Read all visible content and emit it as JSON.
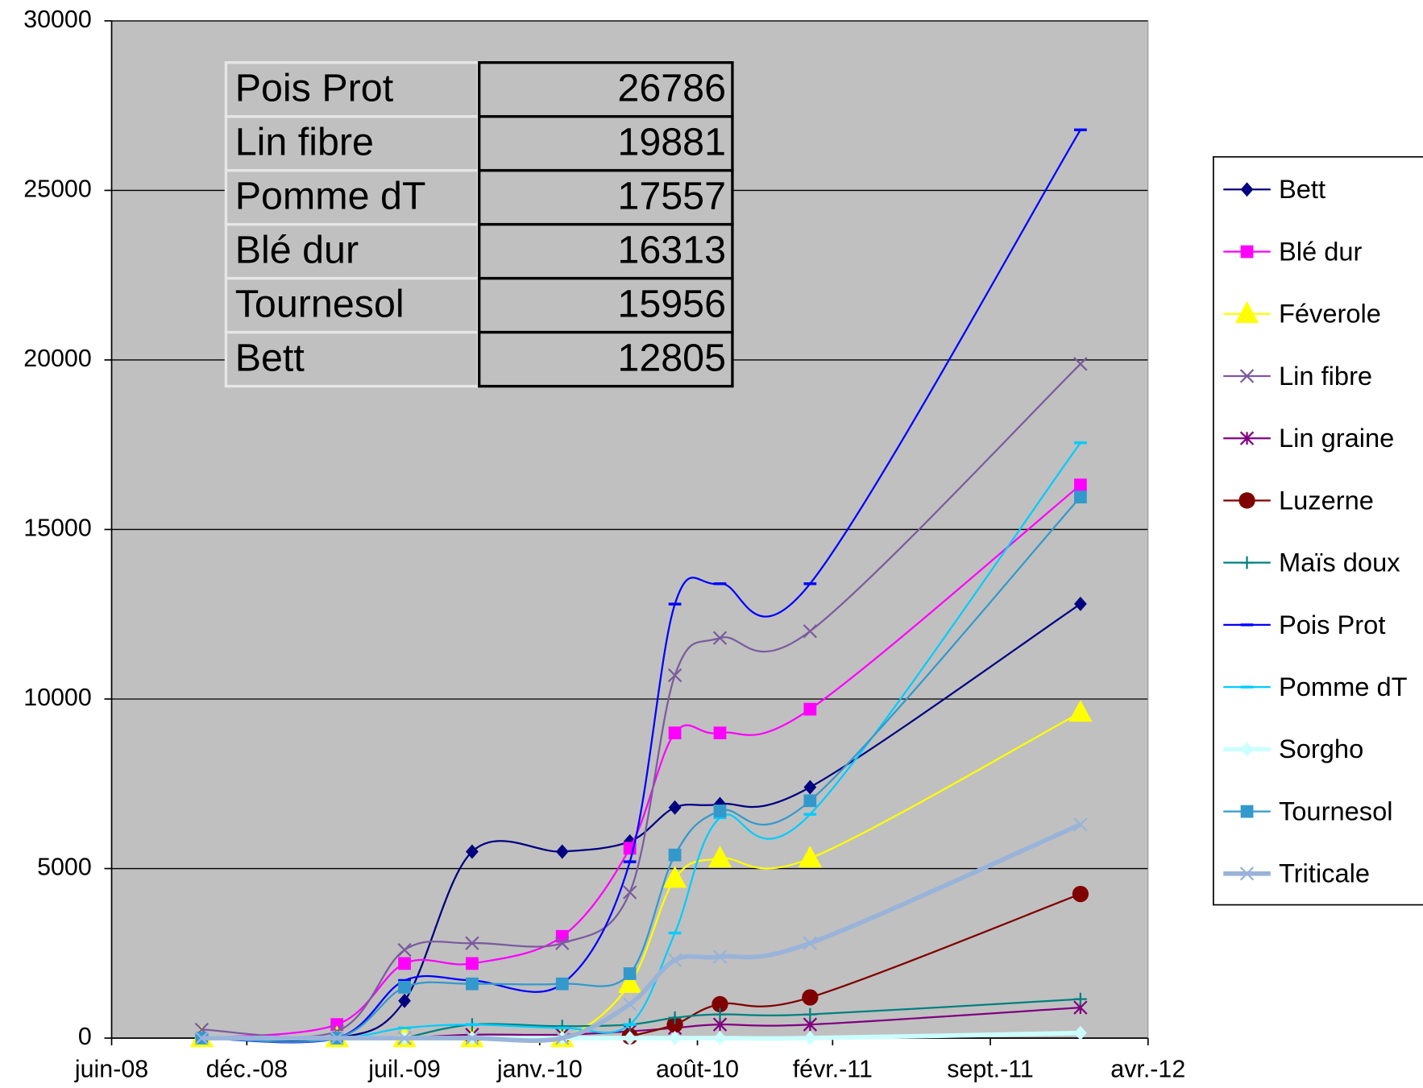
{
  "chart_data": {
    "type": "line",
    "x": [
      "2008-10",
      "2009-04",
      "2009-07",
      "2009-10",
      "2010-02",
      "2010-05",
      "2010-07",
      "2010-09",
      "2011-01",
      "2012-01"
    ],
    "xlim": [
      "2008-06",
      "2012-04"
    ],
    "xticks": [
      {
        "value": "2008-06",
        "label": "juin-08"
      },
      {
        "value": "2008-12",
        "label": "déc.-08"
      },
      {
        "value": "2009-07",
        "label": "juil.-09"
      },
      {
        "value": "2010-01",
        "label": "janv.-10"
      },
      {
        "value": "2010-08",
        "label": "août-10"
      },
      {
        "value": "2011-02",
        "label": "févr.-11"
      },
      {
        "value": "2011-09",
        "label": "sept.-11"
      },
      {
        "value": "2012-04",
        "label": "avr.-12"
      }
    ],
    "ylim": [
      0,
      30000
    ],
    "yticks": [
      0,
      5000,
      10000,
      15000,
      20000,
      25000,
      30000
    ],
    "grid": true,
    "legend": "right",
    "series": [
      {
        "name": "Bett",
        "color": "#000080",
        "marker": "diamond",
        "values": [
          0,
          0,
          1100,
          5500,
          5500,
          5800,
          6800,
          6900,
          7400,
          12805
        ]
      },
      {
        "name": "Blé dur",
        "color": "#ff00ff",
        "marker": "square",
        "values": [
          0,
          400,
          2200,
          2200,
          3000,
          5600,
          9000,
          9000,
          9700,
          16313
        ]
      },
      {
        "name": "Féverole",
        "color": "#ffff00",
        "marker": "triangle",
        "values": [
          0,
          0,
          0,
          0,
          0,
          1600,
          4700,
          5300,
          5300,
          9600
        ]
      },
      {
        "name": "Lin fibre",
        "color": "#7a5c9e",
        "marker": "x",
        "values": [
          250,
          200,
          2600,
          2800,
          2800,
          4300,
          10700,
          11800,
          12000,
          19881
        ]
      },
      {
        "name": "Lin graine",
        "color": "#800080",
        "marker": "star",
        "values": [
          null,
          null,
          0,
          100,
          100,
          200,
          300,
          400,
          400,
          900
        ]
      },
      {
        "name": "Luzerne",
        "color": "#800000",
        "marker": "circle",
        "values": [
          null,
          null,
          null,
          null,
          null,
          50,
          400,
          1000,
          1200,
          4250
        ]
      },
      {
        "name": "Maïs doux",
        "color": "#008080",
        "marker": "plus",
        "values": [
          null,
          null,
          0,
          400,
          350,
          400,
          600,
          700,
          700,
          1150
        ]
      },
      {
        "name": "Pois Prot",
        "color": "#0000ff",
        "marker": "dash",
        "values": [
          0,
          0,
          1700,
          1700,
          1600,
          5200,
          12800,
          13400,
          13400,
          26786
        ]
      },
      {
        "name": "Pomme dT",
        "color": "#00ccff",
        "marker": "dash",
        "values": [
          0,
          0,
          300,
          400,
          300,
          400,
          3100,
          6500,
          6600,
          17557
        ]
      },
      {
        "name": "Sorgho",
        "color": "#ccffff",
        "marker": "diamond",
        "width": 5,
        "values": [
          0,
          0,
          0,
          0,
          0,
          0,
          0,
          0,
          0,
          150
        ]
      },
      {
        "name": "Tournesol",
        "color": "#3399cc",
        "marker": "square",
        "values": [
          0,
          0,
          1500,
          1600,
          1600,
          1900,
          5400,
          6700,
          7000,
          15956
        ]
      },
      {
        "name": "Triticale",
        "color": "#99b3d9",
        "marker": "x",
        "width": 5,
        "values": [
          0,
          0,
          0,
          0,
          0,
          1000,
          2300,
          2400,
          2800,
          6300
        ]
      }
    ]
  },
  "table": {
    "rows": [
      [
        "Pois Prot",
        26786
      ],
      [
        "Lin fibre",
        19881
      ],
      [
        "Pomme dT",
        17557
      ],
      [
        "Blé dur",
        16313
      ],
      [
        "Tournesol",
        15956
      ],
      [
        "Bett",
        12805
      ]
    ]
  }
}
